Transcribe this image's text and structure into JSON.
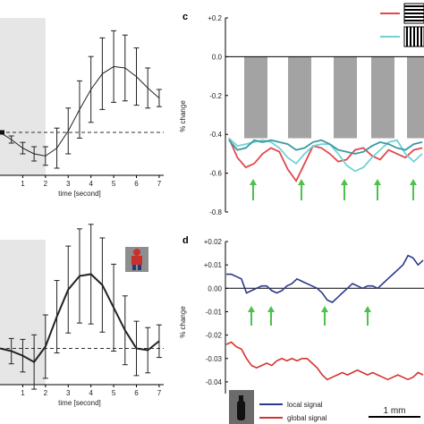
{
  "chart_data": [
    {
      "type": "line",
      "panel": "",
      "xlabel": "time [second]",
      "ylabel": "",
      "xlim": [
        0.0,
        7.2
      ],
      "ylim": [
        -0.6,
        1.6
      ],
      "x_ticks": [
        "1",
        "2",
        "3",
        "4",
        "5",
        "6",
        "7"
      ],
      "stimulus_shading": [
        0,
        2
      ],
      "baseline": 0,
      "x": [
        0.0,
        0.5,
        1.0,
        1.5,
        2.0,
        2.5,
        3.0,
        3.5,
        4.0,
        4.5,
        5.0,
        5.5,
        6.0,
        6.5,
        7.0
      ],
      "y": [
        0.0,
        -0.1,
        -0.22,
        -0.3,
        -0.33,
        -0.22,
        0.02,
        0.32,
        0.6,
        0.82,
        0.92,
        0.9,
        0.78,
        0.62,
        0.48
      ],
      "yerr": [
        0.0,
        0.05,
        0.08,
        0.1,
        0.13,
        0.28,
        0.32,
        0.4,
        0.46,
        0.5,
        0.5,
        0.46,
        0.4,
        0.28,
        0.12
      ]
    },
    {
      "type": "line",
      "panel": "c",
      "xlabel": "",
      "ylabel": "% change",
      "ylim": [
        -0.8,
        0.2
      ],
      "y_ticks": [
        "+0.2",
        "0.0",
        "-0.2",
        "-0.4",
        "-0.6",
        "-0.8"
      ],
      "y_tick_values": [
        0.2,
        0.0,
        -0.2,
        -0.4,
        -0.6,
        -0.8
      ],
      "bars_from_zero_to": -0.42,
      "legend": [
        {
          "color": "#e0484e",
          "icon": "horizontal-grating-icon"
        },
        {
          "color": "#6fd3d6",
          "icon": "vertical-grating-icon"
        }
      ],
      "series": [
        {
          "color": "#e0484e",
          "values": [
            -0.42,
            -0.52,
            -0.57,
            -0.55,
            -0.5,
            -0.47,
            -0.49,
            -0.58,
            -0.64,
            -0.55,
            -0.46,
            -0.47,
            -0.5,
            -0.54,
            -0.53,
            -0.48,
            -0.47,
            -0.51,
            -0.53,
            -0.48,
            -0.5,
            -0.52,
            -0.48,
            -0.47
          ]
        },
        {
          "color": "#6fd3d6",
          "values": [
            -0.42,
            -0.46,
            -0.45,
            -0.44,
            -0.43,
            -0.44,
            -0.47,
            -0.52,
            -0.55,
            -0.5,
            -0.46,
            -0.45,
            -0.45,
            -0.5,
            -0.56,
            -0.59,
            -0.57,
            -0.52,
            -0.48,
            -0.44,
            -0.43,
            -0.5,
            -0.54,
            -0.5
          ]
        },
        {
          "color": "#3a9aa0",
          "values": [
            -0.43,
            -0.48,
            -0.47,
            -0.43,
            -0.44,
            -0.43,
            -0.44,
            -0.45,
            -0.48,
            -0.47,
            -0.44,
            -0.43,
            -0.45,
            -0.48,
            -0.49,
            -0.5,
            -0.49,
            -0.46,
            -0.44,
            -0.45,
            -0.47,
            -0.48,
            -0.45,
            -0.44
          ]
        }
      ],
      "arrows_count": 5
    },
    {
      "type": "line",
      "panel": "",
      "xlabel": "time [second]",
      "ylabel": "",
      "xlim": [
        0.0,
        7.2
      ],
      "ylim": [
        -0.4,
        1.2
      ],
      "x_ticks": [
        "1",
        "2",
        "3",
        "4",
        "5",
        "6",
        "7"
      ],
      "stimulus_shading": [
        0,
        2
      ],
      "baseline": 0,
      "x": [
        0.0,
        0.5,
        1.0,
        1.5,
        2.0,
        2.5,
        3.0,
        3.5,
        4.0,
        4.5,
        5.0,
        5.5,
        6.0,
        6.5,
        7.0
      ],
      "y": [
        0.0,
        -0.03,
        -0.08,
        -0.15,
        0.02,
        0.35,
        0.65,
        0.8,
        0.82,
        0.7,
        0.45,
        0.2,
        0.0,
        -0.02,
        0.08
      ],
      "yerr": [
        0.0,
        0.14,
        0.18,
        0.3,
        0.35,
        0.4,
        0.48,
        0.52,
        0.55,
        0.52,
        0.48,
        0.38,
        0.3,
        0.25,
        0.18
      ]
    },
    {
      "type": "line",
      "panel": "d",
      "xlabel": "",
      "ylabel": "% change",
      "ylim": [
        -0.045,
        0.02
      ],
      "y_ticks": [
        "+0.02",
        "+0.01",
        "0.00",
        "-0.01",
        "-0.02",
        "-0.03",
        "-0.04"
      ],
      "y_tick_values": [
        0.02,
        0.01,
        0.0,
        -0.01,
        -0.02,
        -0.03,
        -0.04
      ],
      "scale_bar_label": "1 mm",
      "series": [
        {
          "name": "local signal",
          "color": "#2b3a8a",
          "values": [
            0.006,
            0.006,
            0.005,
            0.004,
            -0.002,
            -0.001,
            0.0,
            0.001,
            0.001,
            -0.001,
            -0.002,
            -0.001,
            0.001,
            0.002,
            0.004,
            0.003,
            0.002,
            0.001,
            0.0,
            -0.002,
            -0.005,
            -0.006,
            -0.004,
            -0.002,
            0.0,
            0.002,
            0.001,
            0.0,
            0.001,
            0.001,
            0.0,
            0.002,
            0.004,
            0.006,
            0.008,
            0.01,
            0.014,
            0.013,
            0.01,
            0.012
          ]
        },
        {
          "name": "global signal",
          "color": "#d6322e",
          "values": [
            -0.024,
            -0.023,
            -0.025,
            -0.026,
            -0.03,
            -0.033,
            -0.034,
            -0.033,
            -0.032,
            -0.033,
            -0.031,
            -0.03,
            -0.031,
            -0.03,
            -0.031,
            -0.03,
            -0.03,
            -0.032,
            -0.034,
            -0.037,
            -0.039,
            -0.038,
            -0.037,
            -0.036,
            -0.037,
            -0.036,
            -0.035,
            -0.036,
            -0.037,
            -0.036,
            -0.037,
            -0.038,
            -0.039,
            -0.038,
            -0.037,
            -0.038,
            -0.039,
            -0.038,
            -0.036,
            -0.037
          ]
        }
      ],
      "arrows_count": 4
    }
  ]
}
